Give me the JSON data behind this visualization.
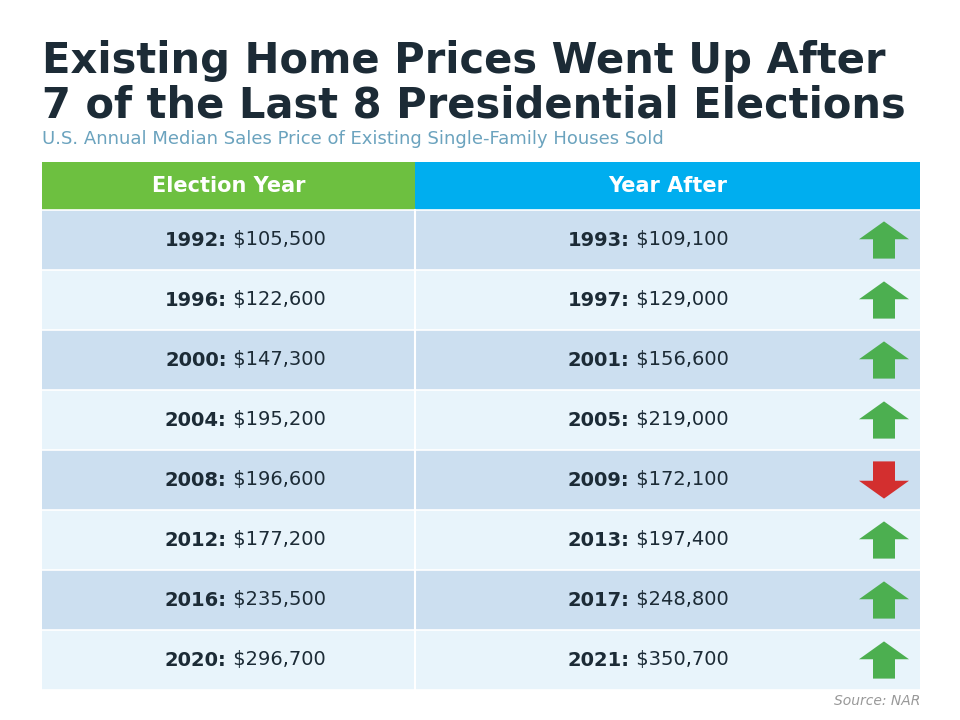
{
  "title_line1": "Existing Home Prices Went Up After",
  "title_line2": "7 of the Last 8 Presidential Elections",
  "subtitle": "U.S. Annual Median Sales Price of Existing Single-Family Houses Sold",
  "source": "Source: NAR",
  "header_col1": "Election Year",
  "header_col2": "Year After",
  "header_color_col1": "#6DC040",
  "header_color_col2": "#00AEEF",
  "header_text_color": "#FFFFFF",
  "row_color_odd": "#CCDFF0",
  "row_color_even": "#E8F4FB",
  "rows": [
    {
      "election_year": "1992",
      "election_price": "$105,500",
      "after_year": "1993",
      "after_price": "$109,100",
      "up": true
    },
    {
      "election_year": "1996",
      "election_price": "$122,600",
      "after_year": "1997",
      "after_price": "$129,000",
      "up": true
    },
    {
      "election_year": "2000",
      "election_price": "$147,300",
      "after_year": "2001",
      "after_price": "$156,600",
      "up": true
    },
    {
      "election_year": "2004",
      "election_price": "$195,200",
      "after_year": "2005",
      "after_price": "$219,000",
      "up": true
    },
    {
      "election_year": "2008",
      "election_price": "$196,600",
      "after_year": "2009",
      "after_price": "$172,100",
      "up": false
    },
    {
      "election_year": "2012",
      "election_price": "$177,200",
      "after_year": "2013",
      "after_price": "$197,400",
      "up": true
    },
    {
      "election_year": "2016",
      "election_price": "$235,500",
      "after_year": "2017",
      "after_price": "$248,800",
      "up": true
    },
    {
      "election_year": "2020",
      "election_price": "$296,700",
      "after_year": "2021",
      "after_price": "$350,700",
      "up": true
    }
  ],
  "arrow_up_color": "#4CAF50",
  "arrow_down_color": "#D32F2F",
  "top_bar_color": "#00AEEF",
  "background_color": "#FFFFFF",
  "title_color": "#1C2B36",
  "subtitle_color": "#6BA3BE",
  "source_color": "#999999",
  "cell_text_color": "#1C2B36"
}
